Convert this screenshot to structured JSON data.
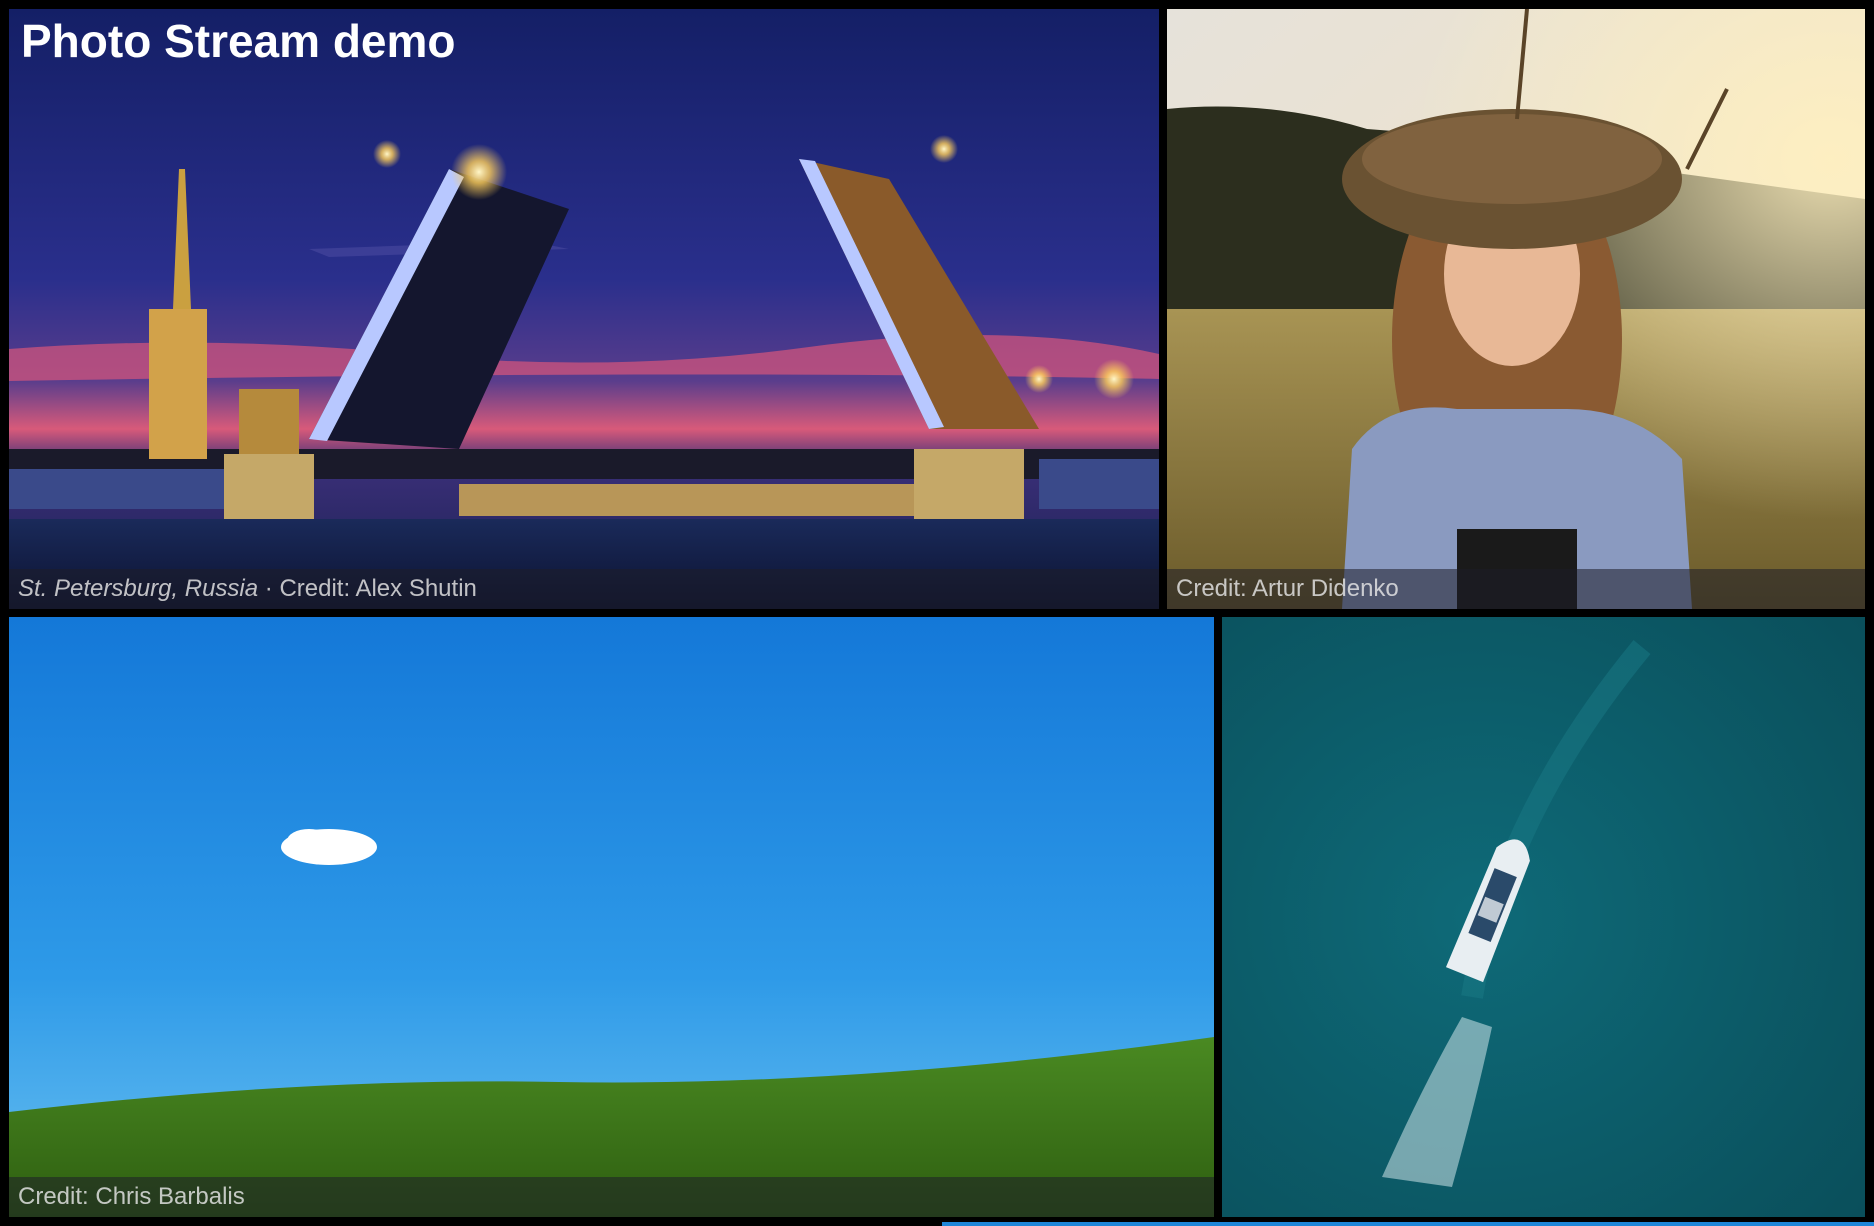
{
  "page": {
    "title": "Photo Stream demo"
  },
  "photos": [
    {
      "location": "St. Petersburg, Russia",
      "separator": " · ",
      "credit": "Credit: Alex Shutin"
    },
    {
      "credit": "Credit: Artur Didenko"
    },
    {
      "credit": "Credit: Chris Barbalis"
    },
    {
      "credit": ""
    }
  ]
}
